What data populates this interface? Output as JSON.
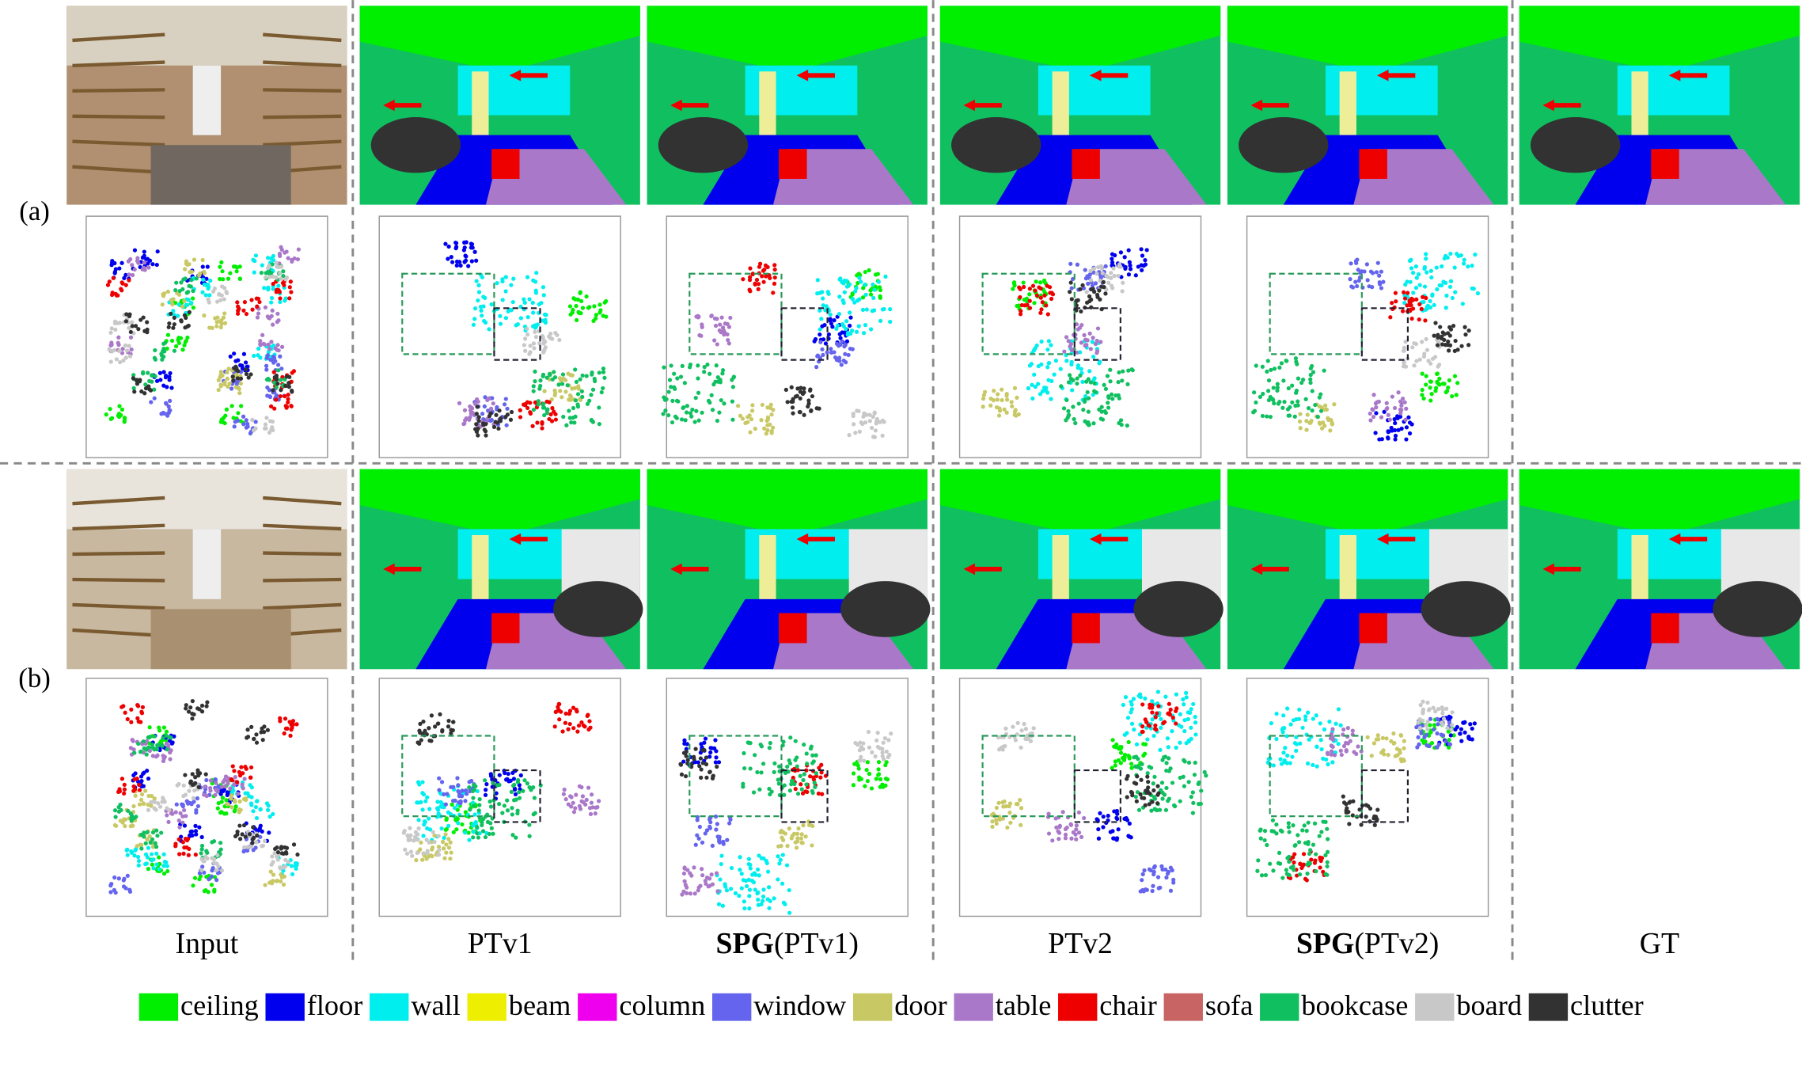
{
  "row_labels": [
    "(a)",
    "(b)"
  ],
  "columns": [
    {
      "label": "Input"
    },
    {
      "label": "PTv1"
    },
    {
      "bold": "SPG",
      "label": "(PTv1)"
    },
    {
      "label": "PTv2"
    },
    {
      "bold": "SPG",
      "label": "(PTv2)"
    },
    {
      "label": "GT"
    }
  ],
  "legend": [
    {
      "name": "ceiling",
      "color": "#00ee00"
    },
    {
      "name": "floor",
      "color": "#0000ee"
    },
    {
      "name": "wall",
      "color": "#00eeee"
    },
    {
      "name": "beam",
      "color": "#eeee00"
    },
    {
      "name": "column",
      "color": "#ee00ee"
    },
    {
      "name": "window",
      "color": "#6464ee"
    },
    {
      "name": "door",
      "color": "#c8c864"
    },
    {
      "name": "table",
      "color": "#aa78c8"
    },
    {
      "name": "chair",
      "color": "#ee0000"
    },
    {
      "name": "sofa",
      "color": "#c86464"
    },
    {
      "name": "bookcase",
      "color": "#10c060"
    },
    {
      "name": "board",
      "color": "#c8c8c8"
    },
    {
      "name": "clutter",
      "color": "#323232"
    }
  ]
}
